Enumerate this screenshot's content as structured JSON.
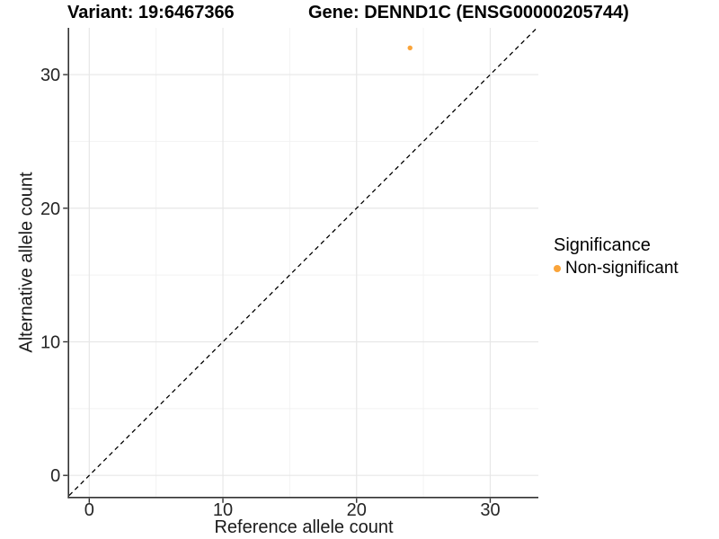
{
  "titles": {
    "variant": "Variant: 19:6467366",
    "gene": "Gene: DENND1C (ENSG00000205744)"
  },
  "chart_data": {
    "type": "scatter",
    "title": "Variant: 19:6467366   Gene: DENND1C (ENSG00000205744)",
    "xlabel": "Reference allele count",
    "ylabel": "Alternative allele count",
    "xlim": [
      -1.5,
      33.6
    ],
    "ylim": [
      -1.6,
      33.5
    ],
    "x_ticks": [
      0,
      10,
      20,
      30
    ],
    "y_ticks": [
      0,
      10,
      20,
      30
    ],
    "x_minor_ticks": [
      5,
      15,
      25
    ],
    "y_minor_ticks": [
      5,
      15,
      25
    ],
    "grid": "on",
    "reference_line": {
      "kind": "identity",
      "style": "dashed",
      "color": "#000000"
    },
    "series": [
      {
        "name": "Non-significant",
        "color": "#FAA43A",
        "points": [
          {
            "x": 24,
            "y": 32
          }
        ]
      }
    ],
    "legend": {
      "title": "Significance",
      "position": "right",
      "items": [
        {
          "label": "Non-significant",
          "color": "#FAA43A"
        }
      ]
    }
  },
  "style": {
    "background": "#FFFFFF",
    "axis_line_color": "#333333",
    "tick_label_color": "#262626",
    "grid_major_color": "#E7E7E7",
    "grid_minor_color": "#F2F2F2",
    "point_color": "#FAA43A",
    "dash_color": "#000000"
  }
}
